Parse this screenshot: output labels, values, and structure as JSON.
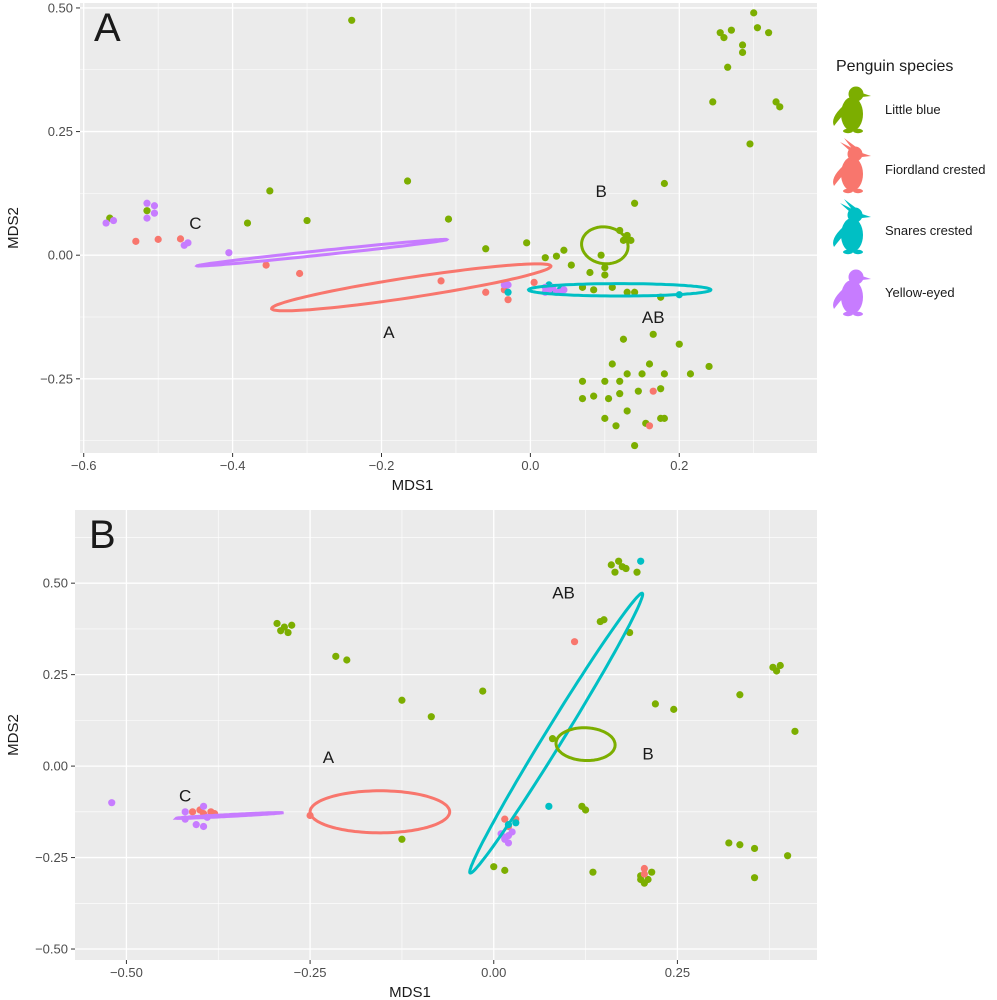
{
  "legend": {
    "title": "Penguin species",
    "entries": [
      {
        "name": "Little blue",
        "color": "#7CAE00",
        "icon": "penguin-icon"
      },
      {
        "name": "Fiordland crested",
        "color": "#F8766D",
        "icon": "crested-penguin-icon"
      },
      {
        "name": "Snares crested",
        "color": "#00BFC4",
        "icon": "crested-penguin-icon"
      },
      {
        "name": "Yellow-eyed",
        "color": "#C77CFF",
        "icon": "penguin-icon"
      }
    ]
  },
  "colors": {
    "panel_bg": "#EBEBEB",
    "grid": "#FFFFFF",
    "axis_text": "#4D4D4D",
    "title_text": "#1A1A1A"
  },
  "chart_data": [
    {
      "type": "scatter",
      "panel_label": "A",
      "xlabel": "MDS1",
      "ylabel": "MDS2",
      "xlim": [
        -0.605,
        0.385
      ],
      "ylim": [
        -0.4,
        0.51
      ],
      "xticks": [
        -0.6,
        -0.4,
        -0.2,
        0.0,
        0.2
      ],
      "xtick_labels": [
        "−0.6",
        "−0.4",
        "−0.2",
        "0.0",
        "0.2"
      ],
      "yticks": [
        -0.25,
        0.0,
        0.25,
        0.5
      ],
      "ytick_labels": [
        "−0.25",
        "0.00",
        "0.25",
        "0.50"
      ],
      "series": [
        {
          "name": "Little blue",
          "color": "#7CAE00",
          "points": [
            [
              -0.24,
              0.475
            ],
            [
              -0.565,
              0.075
            ],
            [
              -0.515,
              0.09
            ],
            [
              -0.35,
              0.13
            ],
            [
              -0.38,
              0.065
            ],
            [
              -0.3,
              0.07
            ],
            [
              -0.165,
              0.15
            ],
            [
              -0.11,
              0.073
            ],
            [
              -0.06,
              0.013
            ],
            [
              -0.005,
              0.025
            ],
            [
              0.02,
              -0.005
            ],
            [
              0.035,
              -0.002
            ],
            [
              0.045,
              0.01
            ],
            [
              0.055,
              -0.02
            ],
            [
              0.07,
              -0.065
            ],
            [
              0.085,
              -0.07
            ],
            [
              0.1,
              -0.04
            ],
            [
              0.11,
              -0.065
            ],
            [
              0.1,
              -0.025
            ],
            [
              0.08,
              -0.035
            ],
            [
              0.095,
              0.0
            ],
            [
              0.12,
              0.05
            ],
            [
              0.13,
              0.04
            ],
            [
              0.125,
              0.03
            ],
            [
              0.135,
              0.03
            ],
            [
              0.14,
              0.105
            ],
            [
              0.18,
              0.145
            ],
            [
              0.13,
              -0.075
            ],
            [
              0.14,
              -0.075
            ],
            [
              0.175,
              -0.085
            ],
            [
              0.165,
              -0.16
            ],
            [
              0.125,
              -0.17
            ],
            [
              0.11,
              -0.22
            ],
            [
              0.2,
              -0.18
            ],
            [
              0.24,
              -0.225
            ],
            [
              0.215,
              -0.24
            ],
            [
              0.18,
              -0.24
            ],
            [
              0.16,
              -0.22
            ],
            [
              0.15,
              -0.24
            ],
            [
              0.13,
              -0.24
            ],
            [
              0.12,
              -0.255
            ],
            [
              0.1,
              -0.255
            ],
            [
              0.07,
              -0.255
            ],
            [
              0.085,
              -0.285
            ],
            [
              0.07,
              -0.29
            ],
            [
              0.105,
              -0.29
            ],
            [
              0.12,
              -0.28
            ],
            [
              0.145,
              -0.275
            ],
            [
              0.175,
              -0.27
            ],
            [
              0.13,
              -0.315
            ],
            [
              0.1,
              -0.33
            ],
            [
              0.115,
              -0.345
            ],
            [
              0.155,
              -0.34
            ],
            [
              0.18,
              -0.33
            ],
            [
              0.175,
              -0.33
            ],
            [
              0.14,
              -0.385
            ],
            [
              0.245,
              0.31
            ],
            [
              0.255,
              0.45
            ],
            [
              0.26,
              0.44
            ],
            [
              0.265,
              0.38
            ],
            [
              0.27,
              0.455
            ],
            [
              0.285,
              0.425
            ],
            [
              0.285,
              0.41
            ],
            [
              0.3,
              0.49
            ],
            [
              0.305,
              0.46
            ],
            [
              0.32,
              0.45
            ],
            [
              0.33,
              0.31
            ],
            [
              0.335,
              0.3
            ],
            [
              0.295,
              0.225
            ]
          ]
        },
        {
          "name": "Fiordland crested",
          "color": "#F8766D",
          "points": [
            [
              -0.53,
              0.028
            ],
            [
              -0.5,
              0.032
            ],
            [
              -0.47,
              0.033
            ],
            [
              -0.355,
              -0.02
            ],
            [
              -0.31,
              -0.037
            ],
            [
              -0.12,
              -0.052
            ],
            [
              -0.06,
              -0.075
            ],
            [
              -0.03,
              -0.09
            ],
            [
              -0.035,
              -0.07
            ],
            [
              0.005,
              -0.055
            ],
            [
              0.165,
              -0.275
            ],
            [
              0.16,
              -0.345
            ]
          ]
        },
        {
          "name": "Snares crested",
          "color": "#00BFC4",
          "points": [
            [
              0.025,
              -0.06
            ],
            [
              0.03,
              -0.07
            ],
            [
              0.04,
              -0.07
            ],
            [
              -0.03,
              -0.075
            ],
            [
              0.2,
              -0.08
            ]
          ]
        },
        {
          "name": "Yellow-eyed",
          "color": "#C77CFF",
          "points": [
            [
              -0.57,
              0.065
            ],
            [
              -0.56,
              0.07
            ],
            [
              -0.515,
              0.105
            ],
            [
              -0.515,
              0.075
            ],
            [
              -0.505,
              0.085
            ],
            [
              -0.505,
              0.1
            ],
            [
              -0.465,
              0.02
            ],
            [
              -0.46,
              0.025
            ],
            [
              -0.405,
              0.005
            ],
            [
              -0.035,
              -0.06
            ],
            [
              -0.03,
              -0.06
            ],
            [
              0.02,
              -0.065
            ],
            [
              0.025,
              -0.07
            ],
            [
              0.03,
              -0.065
            ],
            [
              0.035,
              -0.075
            ],
            [
              0.04,
              -0.075
            ],
            [
              0.045,
              -0.07
            ],
            [
              0.02,
              -0.075
            ]
          ]
        }
      ],
      "ellipses": [
        {
          "name": "Fiordland crested",
          "color": "#F8766D",
          "cx": -0.16,
          "cy": -0.065,
          "rx": 0.385,
          "ry": 0.04,
          "angle": -13
        },
        {
          "name": "Yellow-eyed",
          "color": "#C77CFF",
          "cx": -0.28,
          "cy": 0.005,
          "rx": 0.34,
          "ry": 0.009,
          "angle": -9
        },
        {
          "name": "Snares crested",
          "color": "#00BFC4",
          "cx": 0.12,
          "cy": -0.07,
          "rx": 0.245,
          "ry": 0.025,
          "angle": 0
        },
        {
          "name": "Little blue",
          "color": "#7CAE00",
          "cx": 0.1,
          "cy": 0.02,
          "rx": 0.062,
          "ry": 0.075,
          "angle": -10
        }
      ],
      "annotations": [
        {
          "text": "C",
          "x": -0.45,
          "y": 0.065
        },
        {
          "text": "A",
          "x": -0.19,
          "y": -0.155
        },
        {
          "text": "B",
          "x": 0.095,
          "y": 0.13
        },
        {
          "text": "AB",
          "x": 0.165,
          "y": -0.125
        }
      ]
    },
    {
      "type": "scatter",
      "panel_label": "B",
      "xlabel": "MDS1",
      "ylabel": "MDS2",
      "xlim": [
        -0.57,
        0.44
      ],
      "ylim": [
        -0.53,
        0.7
      ],
      "xticks": [
        -0.5,
        -0.25,
        0.0,
        0.25
      ],
      "xtick_labels": [
        "−0.50",
        "−0.25",
        "0.00",
        "0.25"
      ],
      "yticks": [
        -0.5,
        -0.25,
        0.0,
        0.25,
        0.5
      ],
      "ytick_labels": [
        "−0.50",
        "−0.25",
        "0.00",
        "0.25",
        "0.50"
      ],
      "series": [
        {
          "name": "Little blue",
          "color": "#7CAE00",
          "points": [
            [
              -0.295,
              0.39
            ],
            [
              -0.29,
              0.37
            ],
            [
              -0.285,
              0.38
            ],
            [
              -0.28,
              0.365
            ],
            [
              -0.275,
              0.385
            ],
            [
              -0.215,
              0.3
            ],
            [
              -0.2,
              0.29
            ],
            [
              -0.125,
              0.18
            ],
            [
              -0.085,
              0.135
            ],
            [
              -0.015,
              0.205
            ],
            [
              -0.125,
              -0.2
            ],
            [
              0.0,
              -0.275
            ],
            [
              0.015,
              -0.285
            ],
            [
              0.08,
              0.075
            ],
            [
              0.12,
              -0.11
            ],
            [
              0.125,
              -0.12
            ],
            [
              0.135,
              -0.29
            ],
            [
              0.145,
              0.395
            ],
            [
              0.15,
              0.4
            ],
            [
              0.16,
              0.55
            ],
            [
              0.165,
              0.53
            ],
            [
              0.17,
              0.56
            ],
            [
              0.175,
              0.545
            ],
            [
              0.18,
              0.54
            ],
            [
              0.185,
              0.365
            ],
            [
              0.195,
              0.53
            ],
            [
              0.2,
              -0.3
            ],
            [
              0.2,
              -0.31
            ],
            [
              0.205,
              -0.32
            ],
            [
              0.21,
              -0.31
            ],
            [
              0.215,
              -0.29
            ],
            [
              0.22,
              0.17
            ],
            [
              0.245,
              0.155
            ],
            [
              0.32,
              -0.21
            ],
            [
              0.335,
              -0.215
            ],
            [
              0.335,
              0.195
            ],
            [
              0.355,
              -0.225
            ],
            [
              0.355,
              -0.305
            ],
            [
              0.38,
              0.27
            ],
            [
              0.385,
              0.26
            ],
            [
              0.39,
              0.275
            ],
            [
              0.4,
              -0.245
            ],
            [
              0.41,
              0.095
            ]
          ]
        },
        {
          "name": "Fiordland crested",
          "color": "#F8766D",
          "points": [
            [
              -0.41,
              -0.125
            ],
            [
              -0.4,
              -0.12
            ],
            [
              -0.395,
              -0.13
            ],
            [
              -0.385,
              -0.125
            ],
            [
              -0.38,
              -0.13
            ],
            [
              -0.25,
              -0.135
            ],
            [
              0.015,
              -0.145
            ],
            [
              0.02,
              -0.165
            ],
            [
              0.03,
              -0.145
            ],
            [
              0.11,
              0.34
            ],
            [
              0.205,
              -0.28
            ],
            [
              0.205,
              -0.295
            ]
          ]
        },
        {
          "name": "Snares crested",
          "color": "#00BFC4",
          "points": [
            [
              0.02,
              -0.16
            ],
            [
              0.03,
              -0.155
            ],
            [
              0.075,
              -0.11
            ],
            [
              0.2,
              0.56
            ]
          ]
        },
        {
          "name": "Yellow-eyed",
          "color": "#C77CFF",
          "points": [
            [
              -0.52,
              -0.1
            ],
            [
              -0.42,
              -0.125
            ],
            [
              -0.42,
              -0.145
            ],
            [
              -0.405,
              -0.16
            ],
            [
              -0.395,
              -0.11
            ],
            [
              -0.39,
              -0.14
            ],
            [
              -0.395,
              -0.165
            ],
            [
              0.01,
              -0.185
            ],
            [
              0.015,
              -0.2
            ],
            [
              0.02,
              -0.19
            ],
            [
              0.025,
              -0.18
            ],
            [
              0.02,
              -0.21
            ],
            [
              0.015,
              -0.195
            ]
          ]
        }
      ],
      "ellipses": [
        {
          "name": "Fiordland crested",
          "color": "#F8766D",
          "cx": -0.155,
          "cy": -0.125,
          "rx": 0.19,
          "ry": 0.115,
          "angle": 0
        },
        {
          "name": "Yellow-eyed",
          "color": "#C77CFF",
          "cx": -0.36,
          "cy": -0.135,
          "rx": 0.145,
          "ry": 0.005,
          "angle": -6
        },
        {
          "name": "Snares crested",
          "color": "#00BFC4",
          "cx": 0.085,
          "cy": 0.09,
          "rx": 0.8,
          "ry": 0.028,
          "angle": -73
        },
        {
          "name": "Little blue",
          "color": "#7CAE00",
          "cx": 0.125,
          "cy": 0.06,
          "rx": 0.08,
          "ry": 0.09,
          "angle": -12
        }
      ],
      "annotations": [
        {
          "text": "C",
          "x": -0.42,
          "y": -0.08
        },
        {
          "text": "A",
          "x": -0.225,
          "y": 0.025
        },
        {
          "text": "B",
          "x": 0.21,
          "y": 0.035
        },
        {
          "text": "AB",
          "x": 0.095,
          "y": 0.475
        }
      ]
    }
  ]
}
